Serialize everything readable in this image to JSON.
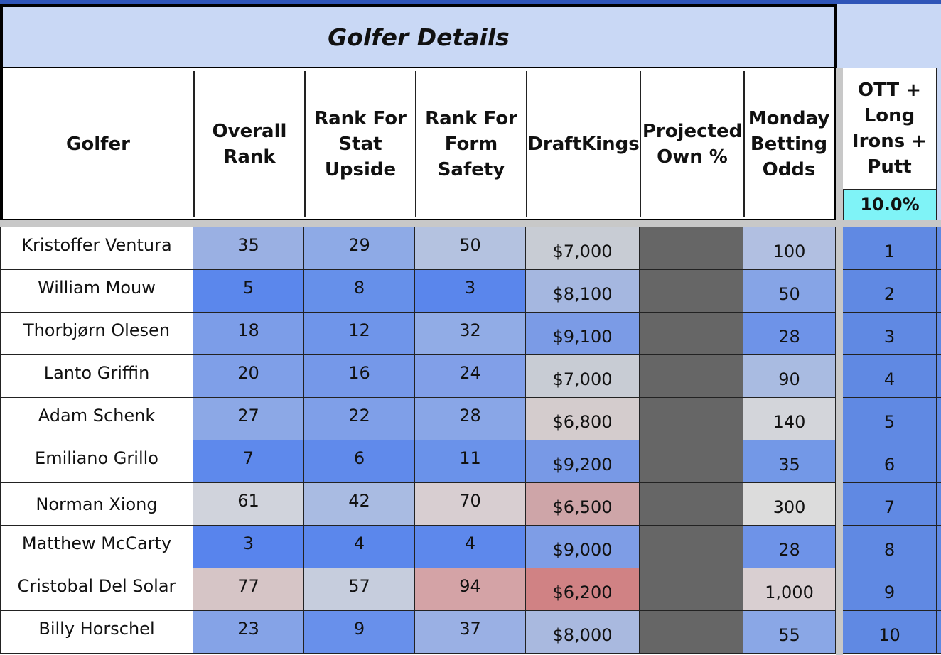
{
  "title": "Golfer Details",
  "headers": [
    "Golfer",
    "Overall Rank",
    "Rank For Stat Upside",
    "Rank For Form Safety",
    "DraftKings",
    "Projected Own %",
    "Monday Betting Odds"
  ],
  "extra_header": "OTT + Long Irons + Putt",
  "extra_weight": "10.0%",
  "rows": [
    [
      "Kristoffer Ventura",
      35,
      29,
      50,
      "$7,000",
      "",
      100,
      1
    ],
    [
      "William Mouw",
      5,
      8,
      3,
      "$8,100",
      "",
      50,
      2
    ],
    [
      "Thorbjørn Olesen",
      18,
      12,
      32,
      "$9,100",
      "",
      28,
      3
    ],
    [
      "Lanto Griffin",
      20,
      16,
      24,
      "$7,000",
      "",
      90,
      4
    ],
    [
      "Adam Schenk",
      27,
      22,
      28,
      "$6,800",
      "",
      140,
      5
    ],
    [
      "Emiliano Grillo",
      7,
      6,
      11,
      "$9,200",
      "",
      35,
      6
    ],
    [
      "Norman Xiong",
      61,
      42,
      70,
      "$6,500",
      "",
      300,
      7
    ],
    [
      "Matthew McCarty",
      3,
      4,
      4,
      "$9,000",
      "",
      28,
      8
    ],
    [
      "Cristobal Del Solar",
      77,
      57,
      94,
      "$6,200",
      "",
      "1,000",
      9
    ],
    [
      "Billy Horschel",
      23,
      9,
      37,
      "$8,000",
      "",
      55,
      10
    ]
  ]
}
